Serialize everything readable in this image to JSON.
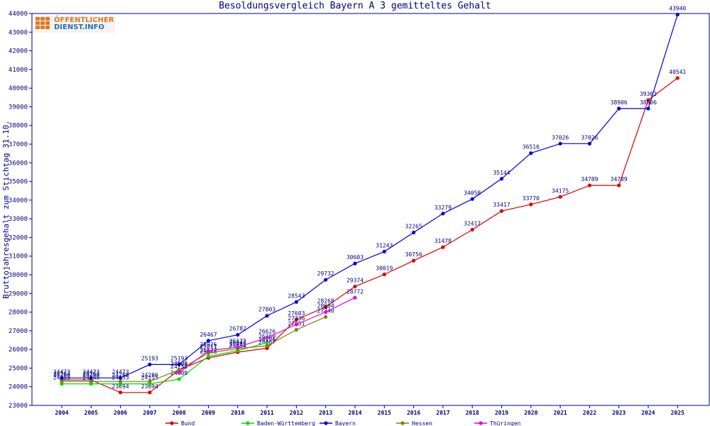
{
  "chart_data": {
    "type": "line",
    "title": "Besoldungsvergleich Bayern A 3 gemitteltes Gehalt",
    "ylabel": "Bruttojahresgehalt zum Stichtag 31.10.",
    "xlabel": "",
    "categories": [
      "2004",
      "2005",
      "2006",
      "2007",
      "2008",
      "2009",
      "2010",
      "2011",
      "2012",
      "2013",
      "2014",
      "2015",
      "2016",
      "2017",
      "2018",
      "2019",
      "2020",
      "2021",
      "2022",
      "2023",
      "2024",
      "2025"
    ],
    "ylim": [
      23000,
      44000
    ],
    "yticks": [
      23000,
      24000,
      25000,
      26000,
      27000,
      28000,
      29000,
      30000,
      31000,
      32000,
      33000,
      34000,
      35000,
      36000,
      37000,
      38000,
      39000,
      40000,
      41000,
      42000,
      43000,
      44000
    ],
    "grid": false,
    "legend_position": "bottom",
    "series": [
      {
        "name": "Bund",
        "color": "#e00000",
        "values": [
          24363,
          24363,
          23694,
          23694,
          24903,
          25548,
          25854,
          26067,
          27603,
          28268,
          29374,
          30019,
          30756,
          31478,
          32417,
          33417,
          33770,
          34175,
          34789,
          34789,
          39362,
          40541
        ]
      },
      {
        "name": "Baden-Württemberg",
        "color": "#00dd00",
        "values": [
          24155,
          24155,
          24155,
          24155,
          24409,
          25627,
          25932,
          26360,
          null,
          null,
          null,
          null,
          null,
          null,
          null,
          null,
          null,
          null,
          null,
          null,
          null,
          null
        ]
      },
      {
        "name": "Bayern",
        "color": "#0000e0",
        "values": [
          24473,
          24473,
          24473,
          25193,
          25193,
          26467,
          26782,
          27803,
          28543,
          29732,
          30603,
          31243,
          32265,
          33279,
          34058,
          35144,
          36516,
          37026,
          37026,
          38906,
          38906,
          43940
        ]
      },
      {
        "name": "Hessen",
        "color": "#808000",
        "values": [
          24286,
          24286,
          24286,
          24286,
          24906,
          25811,
          26042,
          26196,
          27051,
          27740,
          null,
          null,
          null,
          null,
          null,
          null,
          null,
          null,
          null,
          null,
          null,
          null
        ]
      },
      {
        "name": "Thüringen",
        "color": "#e000e0",
        "values": [
          null,
          null,
          null,
          null,
          24751,
          25926,
          26122,
          26626,
          27336,
          28004,
          28772,
          null,
          null,
          null,
          null,
          null,
          null,
          null,
          null,
          null,
          null,
          null
        ]
      }
    ]
  },
  "logo": {
    "line1": "ÖFFENTLICHER",
    "line2": "DIENST.INFO"
  }
}
